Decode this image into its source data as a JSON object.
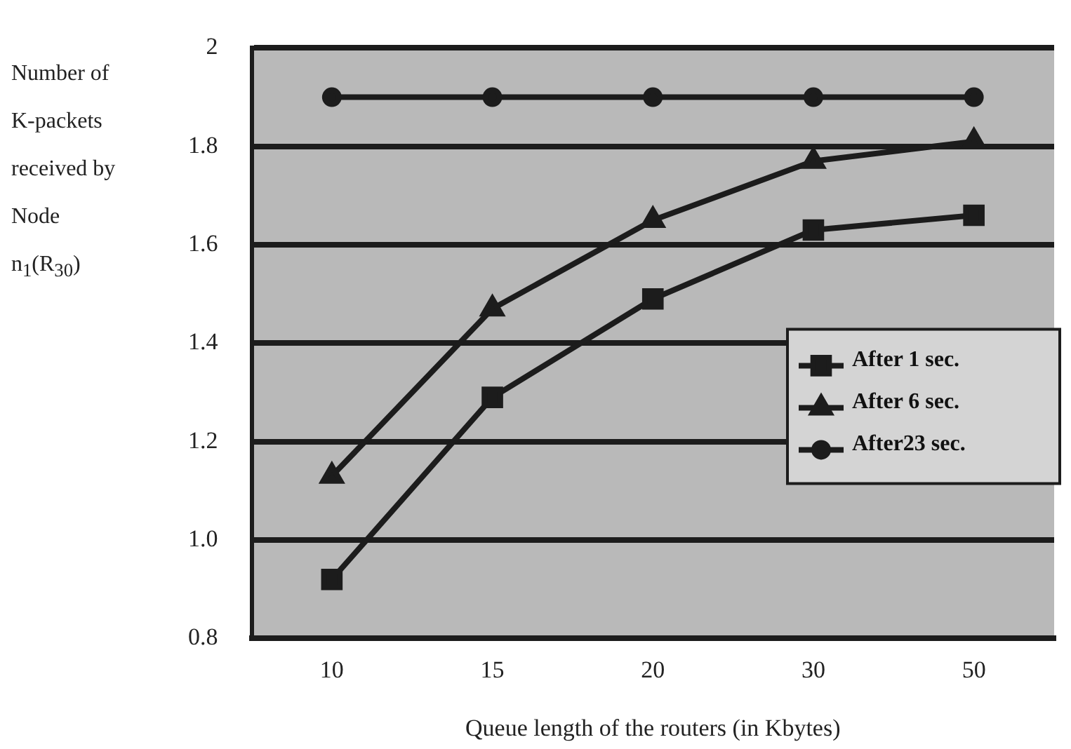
{
  "chart_data": {
    "type": "line",
    "xlabel": "Queue length of the routers (in Kbytes)",
    "ylabel": "Number of K-packets received by Node n$_{1}$(R$_{30}$)",
    "categories": [
      "10",
      "15",
      "20",
      "30",
      "50"
    ],
    "series": [
      {
        "name": "After 1 sec.",
        "color": "#1c1c1c",
        "marker": "square",
        "values": [
          0.92,
          1.29,
          1.49,
          1.63,
          1.66
        ]
      },
      {
        "name": "After 6 sec.",
        "color": "#1c1c1c",
        "marker": "triangle",
        "values": [
          1.13,
          1.47,
          1.65,
          1.77,
          1.81
        ]
      },
      {
        "name": "After23 sec.",
        "color": "#1c1c1c",
        "marker": "circle",
        "values": [
          1.9,
          1.9,
          1.9,
          1.9,
          1.9
        ]
      }
    ],
    "ylim": [
      0.8,
      2
    ],
    "yticks": [
      0.8,
      {
        "value": 1,
        "label": "1.0"
      },
      1.2,
      1.4,
      1.6,
      1.8,
      2
    ],
    "grid": "y",
    "legend": "right",
    "line_style": "solid"
  }
}
